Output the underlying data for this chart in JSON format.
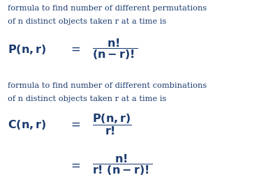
{
  "bg_color": "#ffffff",
  "text_color": "#1a3a6e",
  "figsize": [
    3.71,
    2.77
  ],
  "dpi": 100,
  "line1": "formula to find number of different permutations",
  "line2": "of n distinct objects taken r at a time is",
  "line3": "formula to find number of different combinations",
  "line4": "of n distinct objects taken r at a time is",
  "perm_lhs": "$\\mathbf{P(n,r)}$",
  "perm_rhs": "$\\mathbf{\\dfrac{n!}{(n-r)!}}$",
  "comb_lhs": "$\\mathbf{C(n,r)}$",
  "comb_rhs1": "$\\mathbf{\\dfrac{P(n,r)}{r!}}$",
  "comb_rhs2": "$\\mathbf{\\dfrac{n!}{r!\\,(n-r)!}}$",
  "eq_sign": "$=$",
  "fs_text": 8.2,
  "fs_math": 11.5,
  "fs_eq": 12
}
